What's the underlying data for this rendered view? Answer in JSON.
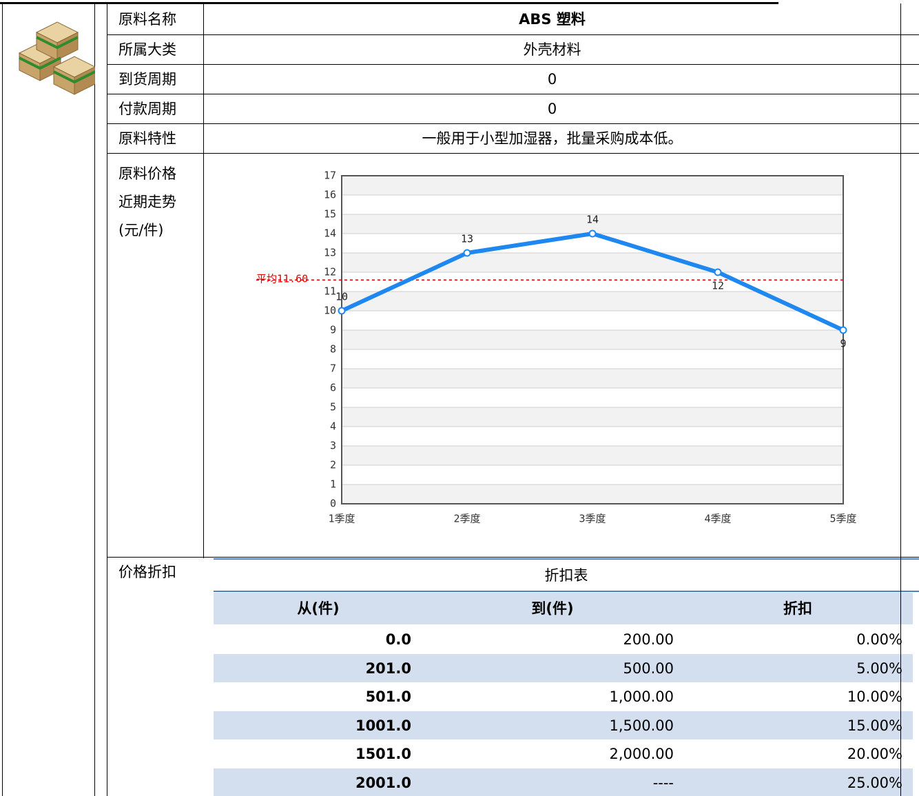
{
  "rows": [
    {
      "label": "原料名称",
      "value": "ABS 塑料"
    },
    {
      "label": "所属大类",
      "value": "外壳材料"
    },
    {
      "label": "到货周期",
      "value": "0"
    },
    {
      "label": "付款周期",
      "value": "0"
    },
    {
      "label": "原料特性",
      "value": "一般用于小型加湿器，批量采购成本低。"
    }
  ],
  "price_label": [
    "原料价格",
    "近期走势",
    "(元/件)"
  ],
  "chart_data": {
    "type": "line",
    "categories": [
      "1季度",
      "2季度",
      "3季度",
      "4季度",
      "5季度"
    ],
    "values": [
      10,
      13,
      14,
      12,
      9
    ],
    "color": "#1e88f0",
    "ylim": [
      0,
      17
    ],
    "yticks": [
      0,
      1,
      2,
      3,
      4,
      5,
      6,
      7,
      8,
      9,
      10,
      11,
      12,
      13,
      14,
      15,
      16,
      17
    ],
    "grid": true,
    "average": {
      "value": 11.6,
      "label": "平均11.60",
      "color": "#e00000"
    }
  },
  "discount": {
    "label": "价格折扣",
    "title": "折扣表",
    "columns": [
      "从(件)",
      "到(件)",
      "折扣"
    ],
    "rows": [
      [
        "0.0",
        "200.00",
        "0.00%"
      ],
      [
        "201.0",
        "500.00",
        "5.00%"
      ],
      [
        "501.0",
        "1,000.00",
        "10.00%"
      ],
      [
        "1001.0",
        "1,500.00",
        "15.00%"
      ],
      [
        "1501.0",
        "2,000.00",
        "20.00%"
      ],
      [
        "2001.0",
        "----",
        "25.00%"
      ]
    ]
  }
}
